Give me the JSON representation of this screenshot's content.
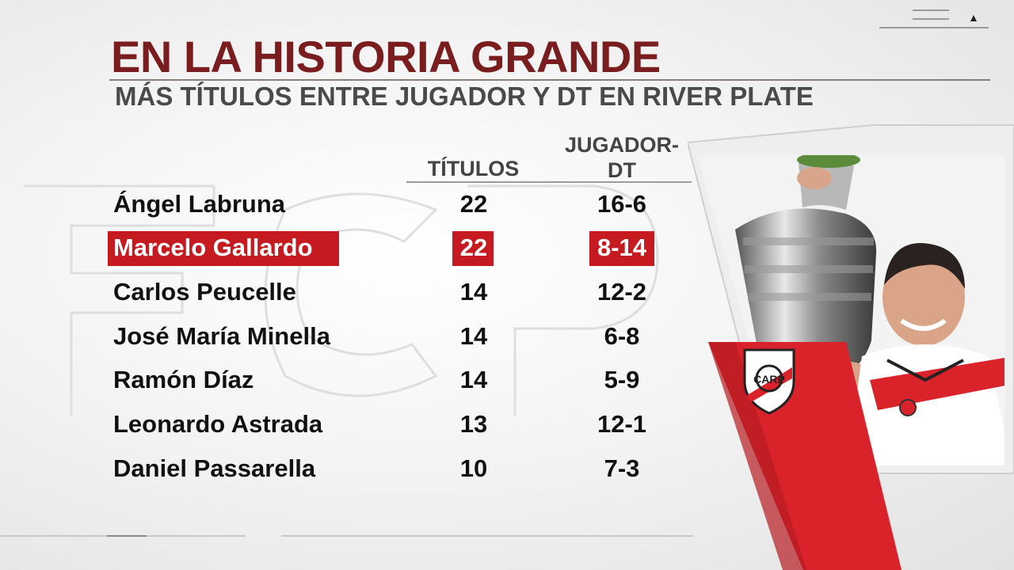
{
  "header": {
    "title": "EN LA HISTORIA GRANDE",
    "subtitle": "MÁS TÍTULOS ENTRE JUGADOR Y DT EN RIVER PLATE"
  },
  "columns": {
    "titulos": "TÍTULOS",
    "jugador_dt_line1": "JUGADOR-",
    "jugador_dt_line2": "DT"
  },
  "rows": [
    {
      "name": "Ángel Labruna",
      "titulos": "22",
      "record": "16-6",
      "highlight": false
    },
    {
      "name": "Marcelo Gallardo",
      "titulos": "22",
      "record": "8-14",
      "highlight": true
    },
    {
      "name": "Carlos Peucelle",
      "titulos": "14",
      "record": "12-2",
      "highlight": false
    },
    {
      "name": "José María Minella",
      "titulos": "14",
      "record": "6-8",
      "highlight": false
    },
    {
      "name": "Ramón Díaz",
      "titulos": "14",
      "record": "5-9",
      "highlight": false
    },
    {
      "name": "Leonardo Astrada",
      "titulos": "13",
      "record": "12-1",
      "highlight": false
    },
    {
      "name": "Daniel Passarella",
      "titulos": "10",
      "record": "7-3",
      "highlight": false
    }
  ],
  "colors": {
    "title": "#7a1d1f",
    "highlight": "#c41a20",
    "river_red": "#d9222a"
  },
  "icons": {
    "crest": "river-plate-crest-icon",
    "menu": "menu-lines-icon",
    "caret": "caret-up-icon"
  }
}
